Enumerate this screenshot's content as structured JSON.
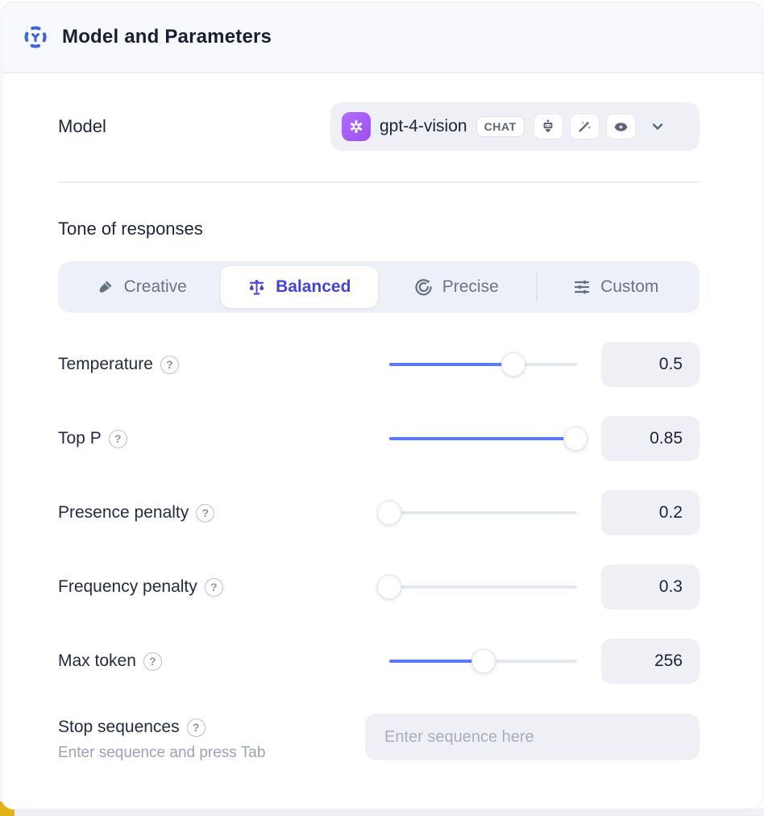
{
  "header": {
    "title": "Model and Parameters"
  },
  "model_row": {
    "label": "Model",
    "selected_model": "gpt-4-vision",
    "type_badge": "CHAT",
    "capability_icons": [
      "robot-icon",
      "magic-wand-icon",
      "vision-eye-icon"
    ]
  },
  "tone": {
    "heading": "Tone of responses",
    "options": [
      {
        "label": "Creative",
        "icon": "brush-icon",
        "selected": false
      },
      {
        "label": "Balanced",
        "icon": "balance-scale-icon",
        "selected": true
      },
      {
        "label": "Precise",
        "icon": "target-arrow-icon",
        "selected": false
      },
      {
        "label": "Custom",
        "icon": "sliders-icon",
        "selected": false
      }
    ]
  },
  "parameters": [
    {
      "label": "Temperature",
      "value": "0.5",
      "slider_percent": 66
    },
    {
      "label": "Top P",
      "value": "0.85",
      "slider_percent": 99
    },
    {
      "label": "Presence penalty",
      "value": "0.2",
      "slider_percent": 0
    },
    {
      "label": "Frequency penalty",
      "value": "0.3",
      "slider_percent": 0
    },
    {
      "label": "Max token",
      "value": "256",
      "slider_percent": 50
    }
  ],
  "stop_sequences": {
    "label": "Stop sequences",
    "hint": "Enter sequence and press Tab",
    "placeholder": "Enter sequence here"
  },
  "icons": {
    "help_glyph": "?"
  },
  "colors": {
    "accent_blue": "#5b7af7",
    "selected_indigo": "#4744d4",
    "header_icon_blue": "#3e63dd",
    "logo_purple": "#9d4ef4",
    "field_gray": "#eef0f6"
  }
}
